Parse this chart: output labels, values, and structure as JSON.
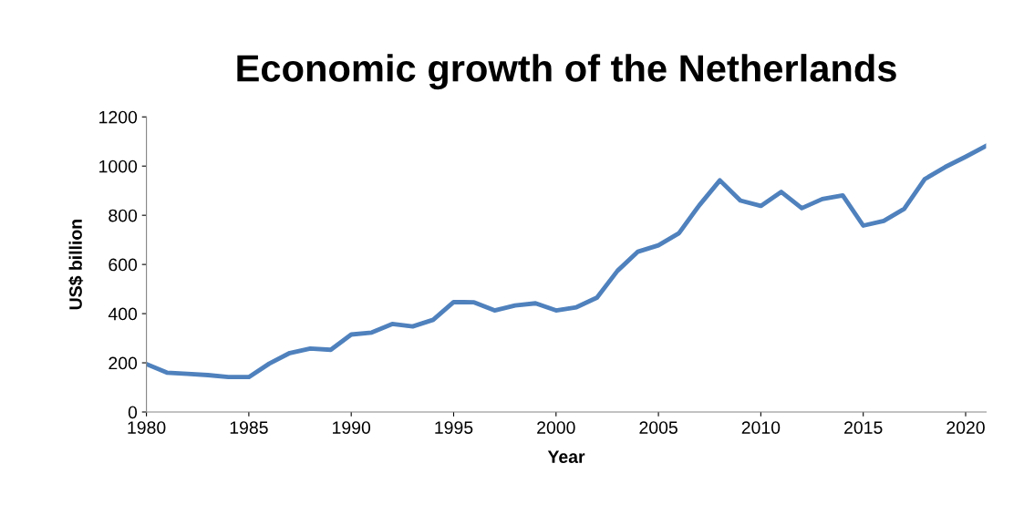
{
  "chart_data": {
    "type": "line",
    "title": "Economic growth of the Netherlands",
    "xlabel": "Year",
    "ylabel": "US$ billion",
    "x": [
      1980,
      1981,
      1982,
      1983,
      1984,
      1985,
      1986,
      1987,
      1988,
      1989,
      1990,
      1991,
      1992,
      1993,
      1994,
      1995,
      1996,
      1997,
      1998,
      1999,
      2000,
      2001,
      2002,
      2003,
      2004,
      2005,
      2006,
      2007,
      2008,
      2009,
      2010,
      2011,
      2012,
      2013,
      2014,
      2015,
      2016,
      2017,
      2018,
      2019,
      2020,
      2021
    ],
    "series": [
      {
        "color": "#4f81bd",
        "values": [
          195,
          160,
          155,
          150,
          142,
          142,
          197,
          240,
          258,
          253,
          315,
          323,
          358,
          348,
          375,
          447,
          446,
          413,
          433,
          442,
          413,
          426,
          465,
          574,
          652,
          678,
          727,
          841,
          942,
          860,
          838,
          895,
          829,
          866,
          881,
          758,
          777,
          826,
          947,
          996,
          1038,
          1082
        ]
      }
    ],
    "xlim": [
      1980,
      2021
    ],
    "xticks": [
      1980,
      1985,
      1990,
      1995,
      2000,
      2005,
      2010,
      2015,
      2020
    ],
    "ylim": [
      0,
      1200
    ],
    "yticks": [
      0,
      200,
      400,
      600,
      800,
      1000,
      1200
    ],
    "grid": false,
    "marker": "none",
    "line_style": "solid"
  }
}
